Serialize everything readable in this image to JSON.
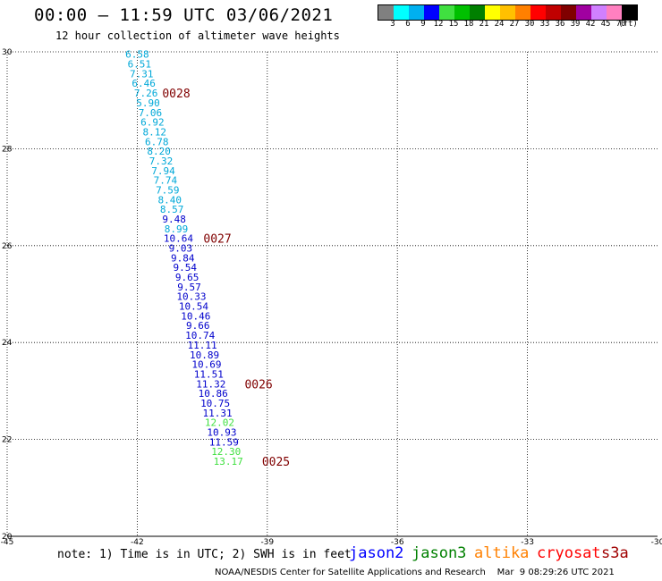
{
  "header": {
    "title": "00:00 — 11:59 UTC 03/06/2021",
    "subtitle": "12 hour collection of altimeter wave heights"
  },
  "colorbar": {
    "colors": [
      "#808080",
      "#00ffff",
      "#00b0f0",
      "#0000ff",
      "#40e040",
      "#00c000",
      "#008000",
      "#ffff00",
      "#ffc000",
      "#ff8000",
      "#ff0000",
      "#c00000",
      "#800000",
      "#a000a0",
      "#d080ff",
      "#ff80c0",
      "#000000"
    ],
    "labels": [
      "3",
      "6",
      "9",
      "12",
      "15",
      "18",
      "21",
      "24",
      "27",
      "30",
      "33",
      "36",
      "39",
      "42",
      "45",
      "70",
      "(ft)"
    ]
  },
  "chart_data": {
    "type": "scatter",
    "xlim": [
      -45,
      -30
    ],
    "ylim": [
      20,
      30
    ],
    "x_ticks": [
      "-45",
      "-42",
      "-39",
      "-36",
      "-33",
      "-30"
    ],
    "y_ticks": [
      "20",
      "22",
      "24",
      "26",
      "28",
      "30"
    ],
    "grid": true,
    "points": [
      {
        "lon": -42.0,
        "lat": 29.95,
        "label": "6.58",
        "color": "#00a8d8"
      },
      {
        "lon": -41.95,
        "lat": 29.75,
        "label": "6.51",
        "color": "#00a8d8"
      },
      {
        "lon": -41.9,
        "lat": 29.55,
        "label": "7.31",
        "color": "#00a8d8"
      },
      {
        "lon": -41.85,
        "lat": 29.35,
        "label": "6.46",
        "color": "#00a8d8"
      },
      {
        "lon": -41.8,
        "lat": 29.15,
        "label": "7.26",
        "color": "#00a8d8"
      },
      {
        "lon": -41.75,
        "lat": 28.95,
        "label": "5.90",
        "color": "#00a8d8"
      },
      {
        "lon": -41.7,
        "lat": 28.75,
        "label": "7.06",
        "color": "#00a8d8"
      },
      {
        "lon": -41.65,
        "lat": 28.55,
        "label": "6.92",
        "color": "#00a8d8"
      },
      {
        "lon": -41.6,
        "lat": 28.35,
        "label": "8.12",
        "color": "#00a8d8"
      },
      {
        "lon": -41.55,
        "lat": 28.15,
        "label": "6.78",
        "color": "#00a8d8"
      },
      {
        "lon": -41.5,
        "lat": 27.95,
        "label": "8.20",
        "color": "#00a8d8"
      },
      {
        "lon": -41.45,
        "lat": 27.75,
        "label": "7.32",
        "color": "#00a8d8"
      },
      {
        "lon": -41.4,
        "lat": 27.55,
        "label": "7.94",
        "color": "#00a8d8"
      },
      {
        "lon": -41.35,
        "lat": 27.35,
        "label": "7.74",
        "color": "#00a8d8"
      },
      {
        "lon": -41.3,
        "lat": 27.15,
        "label": "7.59",
        "color": "#00a8d8"
      },
      {
        "lon": -41.25,
        "lat": 26.95,
        "label": "8.40",
        "color": "#00a8d8"
      },
      {
        "lon": -41.2,
        "lat": 26.75,
        "label": "8.57",
        "color": "#00a8d8"
      },
      {
        "lon": -41.15,
        "lat": 26.55,
        "label": "9.48",
        "color": "#0000cc"
      },
      {
        "lon": -41.1,
        "lat": 26.35,
        "label": "8.99",
        "color": "#00a8d8"
      },
      {
        "lon": -41.05,
        "lat": 26.15,
        "label": "10.64",
        "color": "#0000cc"
      },
      {
        "lon": -41.0,
        "lat": 25.95,
        "label": "9.03",
        "color": "#0000cc"
      },
      {
        "lon": -40.95,
        "lat": 25.75,
        "label": "9.84",
        "color": "#0000cc"
      },
      {
        "lon": -40.9,
        "lat": 25.55,
        "label": "9.54",
        "color": "#0000cc"
      },
      {
        "lon": -40.85,
        "lat": 25.35,
        "label": "9.65",
        "color": "#0000cc"
      },
      {
        "lon": -40.8,
        "lat": 25.15,
        "label": "9.57",
        "color": "#0000cc"
      },
      {
        "lon": -40.75,
        "lat": 24.95,
        "label": "10.33",
        "color": "#0000cc"
      },
      {
        "lon": -40.7,
        "lat": 24.75,
        "label": "10.54",
        "color": "#0000cc"
      },
      {
        "lon": -40.65,
        "lat": 24.55,
        "label": "10.46",
        "color": "#0000cc"
      },
      {
        "lon": -40.6,
        "lat": 24.35,
        "label": "9.66",
        "color": "#0000cc"
      },
      {
        "lon": -40.55,
        "lat": 24.15,
        "label": "10.74",
        "color": "#0000cc"
      },
      {
        "lon": -40.5,
        "lat": 23.95,
        "label": "11.11",
        "color": "#0000cc"
      },
      {
        "lon": -40.45,
        "lat": 23.75,
        "label": "10.89",
        "color": "#0000cc"
      },
      {
        "lon": -40.4,
        "lat": 23.55,
        "label": "10.69",
        "color": "#0000cc"
      },
      {
        "lon": -40.35,
        "lat": 23.35,
        "label": "11.51",
        "color": "#0000cc"
      },
      {
        "lon": -40.3,
        "lat": 23.15,
        "label": "11.32",
        "color": "#0000cc"
      },
      {
        "lon": -40.25,
        "lat": 22.95,
        "label": "10.86",
        "color": "#0000cc"
      },
      {
        "lon": -40.2,
        "lat": 22.75,
        "label": "10.75",
        "color": "#0000cc"
      },
      {
        "lon": -40.15,
        "lat": 22.55,
        "label": "11.31",
        "color": "#0000cc"
      },
      {
        "lon": -40.1,
        "lat": 22.35,
        "label": "12.02",
        "color": "#40e040"
      },
      {
        "lon": -40.05,
        "lat": 22.15,
        "label": "10.93",
        "color": "#0000cc"
      },
      {
        "lon": -40.0,
        "lat": 21.95,
        "label": "11.59",
        "color": "#0000cc"
      },
      {
        "lon": -39.95,
        "lat": 21.75,
        "label": "12.30",
        "color": "#40e040"
      },
      {
        "lon": -39.9,
        "lat": 21.55,
        "label": "13.17",
        "color": "#40e040"
      }
    ],
    "times": [
      {
        "lon": -41.1,
        "lat": 29.15,
        "label": "0028",
        "color": "#800000"
      },
      {
        "lon": -40.15,
        "lat": 26.15,
        "label": "0027",
        "color": "#800000"
      },
      {
        "lon": -39.2,
        "lat": 23.15,
        "label": "0026",
        "color": "#800000"
      },
      {
        "lon": -38.8,
        "lat": 21.55,
        "label": "0025",
        "color": "#800000"
      }
    ]
  },
  "footer": {
    "note": "note: 1) Time is in UTC; 2) SWH is in feet",
    "satellites": [
      {
        "name": "jason2",
        "color": "#0000ff"
      },
      {
        "name": "jason3",
        "color": "#008000"
      },
      {
        "name": "altika",
        "color": "#ff8000"
      },
      {
        "name": "cryosat",
        "color": "#ff0000"
      },
      {
        "name": "s3a",
        "color": "#a00000"
      }
    ],
    "credit": "NOAA/NESDIS Center for Satellite Applications and Research    Mar  9 08:29:26 UTC 2021"
  }
}
